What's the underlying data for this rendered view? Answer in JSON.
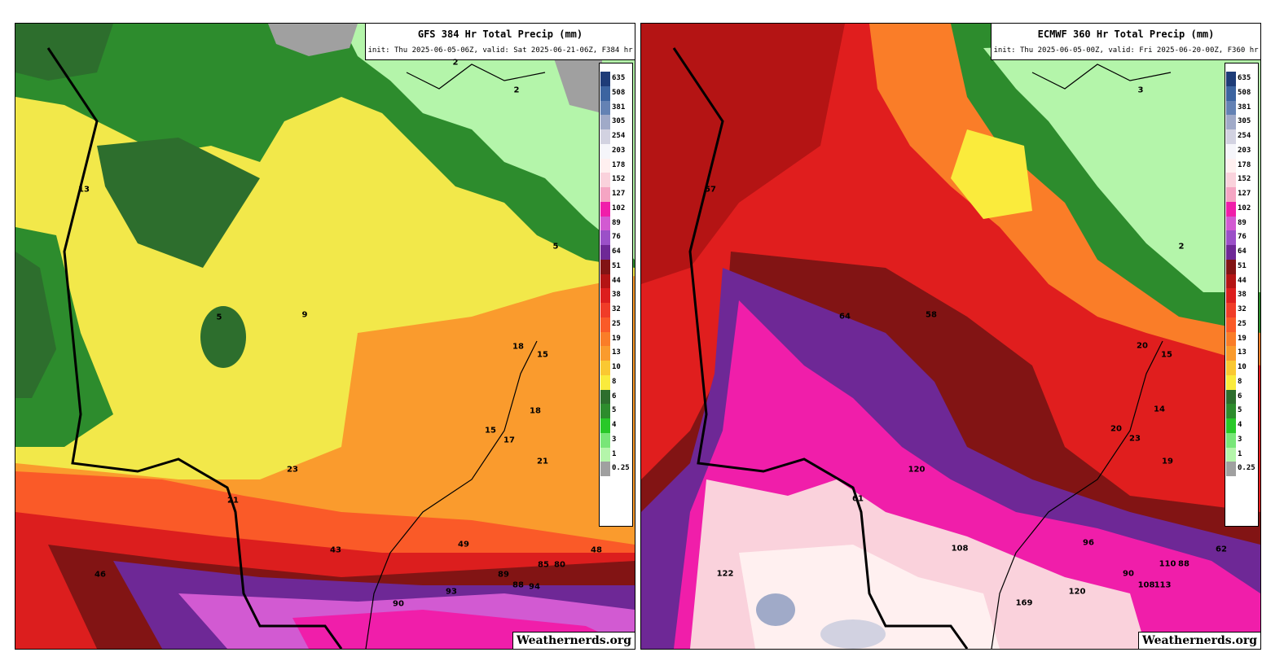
{
  "panels": [
    {
      "id": "gfs",
      "title": "GFS 384 Hr Total Precip (mm)",
      "subtitle": "init: Thu 2025-06-05-06Z, valid: Sat 2025-06-21-06Z, F384 hr",
      "watermark": "Weathernerds.org",
      "base_color": "#f2e84a",
      "labels": [
        "2",
        "2",
        "13",
        "5",
        "9",
        "5",
        "18",
        "15",
        "18",
        "15",
        "17",
        "21",
        "23",
        "21",
        "43",
        "49",
        "46",
        "48",
        "85",
        "80",
        "89",
        "88",
        "94",
        "93",
        "90"
      ]
    },
    {
      "id": "ecmwf",
      "title": "ECMWF 360 Hr Total Precip (mm)",
      "subtitle": "init: Thu 2025-06-05-00Z, valid: Fri 2025-06-20-00Z, F360 hr",
      "watermark": "Weathernerds.org",
      "base_color": "#e01e1e",
      "labels": [
        "3",
        "2",
        "57",
        "64",
        "58",
        "20",
        "15",
        "14",
        "20",
        "23",
        "19",
        "120",
        "61",
        "108",
        "96",
        "62",
        "110",
        "88",
        "90",
        "108",
        "113",
        "122",
        "120",
        "169"
      ]
    }
  ],
  "legend": {
    "labels": [
      "635",
      "508",
      "381",
      "305",
      "254",
      "203",
      "178",
      "152",
      "127",
      "102",
      "89",
      "76",
      "64",
      "51",
      "44",
      "38",
      "32",
      "25",
      "19",
      "13",
      "10",
      "8",
      "6",
      "5",
      "4",
      "3",
      "1",
      "0.25"
    ],
    "colors": [
      "#1e3c78",
      "#3c64a0",
      "#6482b4",
      "#a0aac8",
      "#d2d2e1",
      "#f5f5fa",
      "#fff0f0",
      "#fad2dc",
      "#f5a5c3",
      "#f01eaa",
      "#d25ad2",
      "#9b50c8",
      "#6e2896",
      "#821414",
      "#b41414",
      "#dc1e1e",
      "#f03c28",
      "#fa5a28",
      "#fa7d28",
      "#fa9b2d",
      "#fac832",
      "#faeb3c",
      "#2d6e2d",
      "#2d8c2d",
      "#28c828",
      "#78e678",
      "#b4f5aa",
      "#a0a0a0"
    ]
  }
}
